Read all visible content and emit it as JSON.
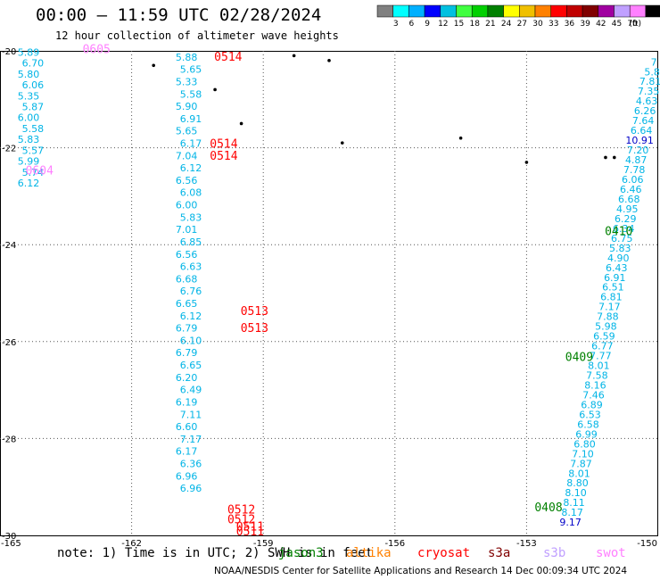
{
  "header": {
    "title": "00:00 – 11:59 UTC 02/28/2024",
    "subtitle": "12 hour collection of altimeter wave heights"
  },
  "legend": {
    "unit": "(ft)",
    "colors": [
      "#808080",
      "#00ffff",
      "#00b0ff",
      "#0000ff",
      "#00c0e0",
      "#40ff40",
      "#00d000",
      "#008000",
      "#ffff00",
      "#f0c000",
      "#ff8000",
      "#ff0000",
      "#c00000",
      "#800000",
      "#a000a0",
      "#c0a0ff",
      "#ff80ff",
      "#000000"
    ],
    "ticks": [
      "3",
      "6",
      "9",
      "12",
      "15",
      "18",
      "21",
      "24",
      "27",
      "30",
      "33",
      "36",
      "39",
      "42",
      "45",
      "70"
    ]
  },
  "note": {
    "text": "note: 1) Time is in UTC; 2) SWH is in feet",
    "satellites": [
      {
        "name": "jason3",
        "color": "#008000"
      },
      {
        "name": "altika",
        "color": "#ff8000"
      },
      {
        "name": "cryosat",
        "color": "#ff0000"
      },
      {
        "name": "s3a",
        "color": "#800000"
      },
      {
        "name": "s3b",
        "color": "#c0a0ff"
      },
      {
        "name": "swot",
        "color": "#ff80ff"
      }
    ]
  },
  "footer": {
    "text": "NOAA/NESDIS Center for Satellite Applications and Research   14 Dec 00:09:34 UTC 2024"
  },
  "chart_data": {
    "type": "scatter",
    "title": "00:00 – 11:59 UTC 02/28/2024",
    "subtitle": "12 hour collection of altimeter wave heights",
    "xlim": [
      -165,
      -150
    ],
    "ylim": [
      -30,
      -20
    ],
    "x_ticks": [
      "-165",
      "-162",
      "-159",
      "-156",
      "-153",
      "-150"
    ],
    "y_ticks": [
      "-20",
      "-22",
      "-24",
      "-26",
      "-28",
      "-30"
    ],
    "grid": true,
    "tracks": [
      {
        "id": "swot_west",
        "satellite": "swot",
        "lon": -164.3,
        "lat_start": -20.1,
        "lat_end": -22.8,
        "values": [
          "5.89",
          "6.70",
          "5.80",
          "6.06",
          "5.35",
          "5.87",
          "6.00",
          "5.58",
          "5.83",
          "5.57",
          "5.99",
          "5.74",
          "6.12"
        ]
      },
      {
        "id": "s3b_mid",
        "satellite": "s3b",
        "lon": -160.7,
        "lat_start": -20.2,
        "lat_end": -29.1,
        "values": [
          "5.88",
          "5.65",
          "5.33",
          "5.58",
          "5.90",
          "6.91",
          "5.65",
          "6.17",
          "7.04",
          "6.12",
          "6.56",
          "6.08",
          "6.00",
          "5.83",
          "7.01",
          "6.85",
          "6.56",
          "6.63",
          "6.68",
          "6.76",
          "6.65",
          "6.12",
          "6.79",
          "6.10",
          "6.79",
          "6.65",
          "6.20",
          "6.49",
          "6.19",
          "7.11",
          "6.60",
          "7.17",
          "6.17",
          "6.36",
          "6.96",
          "6.96"
        ]
      },
      {
        "id": "jason3_east",
        "satellite": "jason3",
        "lon_start": -152.0,
        "lon_end": -150.1,
        "lat_start": -29.8,
        "lat_end": -20.3,
        "values": [
          "9.17",
          "8.17",
          "8.11",
          "8.10",
          "8.80",
          "8.01",
          "7.87",
          "7.10",
          "6.80",
          "6.99",
          "6.58",
          "6.53",
          "6.89",
          "7.46",
          "8.16",
          "7.58",
          "8.01",
          "7.77",
          "6.77",
          "6.59",
          "5.98",
          "7.88",
          "7.17",
          "6.81",
          "6.51",
          "6.91",
          "6.43",
          "4.90",
          "5.83",
          "6.75",
          "6.34",
          "6.29",
          "4.95",
          "6.68",
          "6.46",
          "6.06",
          "7.78",
          "4.87",
          "7.20",
          "10.91",
          "6.64",
          "7.64",
          "6.26",
          "4.63",
          "7.35",
          "7.81",
          "5.8",
          "7"
        ]
      }
    ],
    "time_labels": [
      {
        "text": "0605",
        "satellite": "swot",
        "lon": -162.8,
        "lat": -20.05
      },
      {
        "text": "0604",
        "satellite": "swot",
        "lon": -164.1,
        "lat": -22.55
      },
      {
        "text": "0514",
        "satellite": "cryosat",
        "lon": -159.8,
        "lat": -20.2
      },
      {
        "text": "0514",
        "satellite": "cryosat",
        "lon": -159.9,
        "lat": -22.0
      },
      {
        "text": "0514",
        "satellite": "cryosat",
        "lon": -159.9,
        "lat": -22.25
      },
      {
        "text": "0513",
        "satellite": "cryosat",
        "lon": -159.2,
        "lat": -25.45
      },
      {
        "text": "0513",
        "satellite": "cryosat",
        "lon": -159.2,
        "lat": -25.8
      },
      {
        "text": "0512",
        "satellite": "cryosat",
        "lon": -159.5,
        "lat": -29.55
      },
      {
        "text": "0512",
        "satellite": "cryosat",
        "lon": -159.5,
        "lat": -29.75
      },
      {
        "text": "0511",
        "satellite": "cryosat",
        "lon": -159.3,
        "lat": -29.9
      },
      {
        "text": "0511",
        "satellite": "cryosat",
        "lon": -159.3,
        "lat": -30.0
      },
      {
        "text": "0410",
        "satellite": "jason3",
        "lon": -150.9,
        "lat": -23.8
      },
      {
        "text": "0409",
        "satellite": "jason3",
        "lon": -151.8,
        "lat": -26.4
      },
      {
        "text": "0408",
        "satellite": "jason3",
        "lon": -152.5,
        "lat": -29.5
      }
    ]
  }
}
